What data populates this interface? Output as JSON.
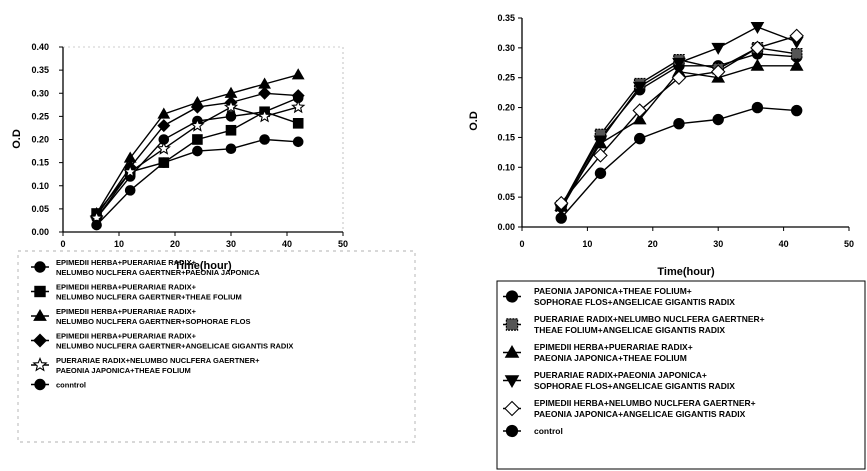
{
  "chart_data": [
    {
      "type": "line",
      "xlabel": "Time(hour)",
      "ylabel": "O.D",
      "xlim": [
        0,
        50
      ],
      "ylim": [
        0,
        0.4
      ],
      "xticks": [
        "0",
        "10",
        "20",
        "30",
        "40",
        "50"
      ],
      "yticks": [
        "0.00",
        "0.05",
        "0.10",
        "0.15",
        "0.20",
        "0.25",
        "0.30",
        "0.35",
        "0.40"
      ],
      "legend_position": "bottom",
      "x": [
        6,
        12,
        18,
        24,
        30,
        36,
        42
      ],
      "series": [
        {
          "name": "EPIMEDII HERBA+PUERARIAE RADIX+ NELUMBO NUCLFERA GAERTNER+PAEONIA JAPONICA",
          "name_lines": [
            "EPIMEDII HERBA+PUERARIAE RADIX+",
            "NELUMBO NUCLFERA GAERTNER+PAEONIA JAPONICA"
          ],
          "marker": "circle",
          "values": [
            0.03,
            0.12,
            0.2,
            0.24,
            0.25,
            0.26,
            0.29
          ]
        },
        {
          "name": "EPIMEDII HERBA+PUERARIAE RADIX+ NELUMBO NUCLFERA GAERTNER+THEAE FOLIUM",
          "name_lines": [
            "EPIMEDII HERBA+PUERARIAE RADIX+",
            "NELUMBO NUCLFERA GAERTNER+THEAE FOLIUM"
          ],
          "marker": "square",
          "values": [
            0.04,
            0.13,
            0.15,
            0.2,
            0.22,
            0.26,
            0.235
          ]
        },
        {
          "name": "EPIMEDII HERBA+PUERARIAE RADIX+ NELUMBO NUCLFERA GAERTNER+SOPHORAE FLOS",
          "name_lines": [
            "EPIMEDII HERBA+PUERARIAE RADIX+",
            "NELUMBO NUCLFERA GAERTNER+SOPHORAE FLOS"
          ],
          "marker": "triangle",
          "values": [
            0.04,
            0.16,
            0.255,
            0.28,
            0.3,
            0.32,
            0.34
          ]
        },
        {
          "name": "EPIMEDII HERBA+PUERARIAE RADIX+ NELUMBO NUCLFERA GAERTNER+ANGELICAE GIGANTIS RADIX",
          "name_lines": [
            "EPIMEDII HERBA+PUERARIAE RADIX+",
            "NELUMBO NUCLFERA GAERTNER+ANGELICAE GIGANTIS RADIX"
          ],
          "marker": "diamond",
          "values": [
            0.035,
            0.14,
            0.23,
            0.27,
            0.28,
            0.3,
            0.295
          ]
        },
        {
          "name": "PUERARIAE RADIX+NELUMBO NUCLFERA GAERTNER+ PAEONIA JAPONICA+THEAE FOLIUM",
          "name_lines": [
            "PUERARIAE RADIX+NELUMBO NUCLFERA GAERTNER+",
            "PAEONIA JAPONICA+THEAE FOLIUM"
          ],
          "marker": "star-open",
          "values": [
            0.03,
            0.13,
            0.18,
            0.23,
            0.27,
            0.25,
            0.27
          ]
        },
        {
          "name": "conntrol",
          "name_lines": [
            "conntrol"
          ],
          "marker": "circle",
          "values": [
            0.015,
            0.09,
            0.15,
            0.175,
            0.18,
            0.2,
            0.195
          ]
        }
      ]
    },
    {
      "type": "line",
      "xlabel": "Time(hour)",
      "ylabel": "O.D",
      "xlim": [
        0,
        50
      ],
      "ylim": [
        0,
        0.35
      ],
      "xticks": [
        "0",
        "10",
        "20",
        "30",
        "40",
        "50"
      ],
      "yticks": [
        "0.00",
        "0.05",
        "0.10",
        "0.15",
        "0.20",
        "0.25",
        "0.30",
        "0.35"
      ],
      "legend_position": "bottom",
      "x": [
        6,
        12,
        18,
        24,
        30,
        36,
        42
      ],
      "series": [
        {
          "name": "PAEONIA JAPONICA+THEAE FOLIUM+ SOPHORAE FLOS+ANGELICAE GIGANTIS RADIX",
          "name_lines": [
            "PAEONIA JAPONICA+THEAE FOLIUM+",
            "SOPHORAE FLOS+ANGELICAE GIGANTIS RADIX"
          ],
          "marker": "circle",
          "values": [
            0.035,
            0.15,
            0.23,
            0.27,
            0.27,
            0.29,
            0.285
          ]
        },
        {
          "name": "PUERARIAE RADIX+NELUMBO NUCLFERA GAERTNER+ THEAE FOLIUM+ANGELICAE GIGANTIS RADIX",
          "name_lines": [
            "PUERARIAE RADIX+NELUMBO NUCLFERA GAERTNER+",
            "THEAE FOLIUM+ANGELICAE GIGANTIS RADIX"
          ],
          "marker": "square-dotted",
          "values": [
            0.035,
            0.155,
            0.24,
            0.28,
            0.265,
            0.3,
            0.29
          ]
        },
        {
          "name": "EPIMEDII HERBA+PUERARIAE RADIX+ PAEONIA JAPONICA+THEAE FOLIUM",
          "name_lines": [
            "EPIMEDII HERBA+PUERARIAE RADIX+",
            "PAEONIA JAPONICA+THEAE FOLIUM"
          ],
          "marker": "triangle",
          "values": [
            0.035,
            0.14,
            0.18,
            0.26,
            0.25,
            0.27,
            0.27
          ]
        },
        {
          "name": "PUERARIAE RADIX+PAEONIA JAPONICA+ SOPHORAE FLOS+ANGELICAE GIGANTIS RADIX",
          "name_lines": [
            "PUERARIAE RADIX+PAEONIA JAPONICA+",
            "SOPHORAE FLOS+ANGELICAE GIGANTIS RADIX"
          ],
          "marker": "triangle-down",
          "values": [
            0.03,
            0.145,
            0.235,
            0.275,
            0.3,
            0.335,
            0.31
          ]
        },
        {
          "name": "EPIMEDII HERBA+NELUMBO NUCLFERA GAERTNER+ PAEONIA JAPONICA+ANGELICAE GIGANTIS RADIX",
          "name_lines": [
            "EPIMEDII HERBA+NELUMBO NUCLFERA GAERTNER+",
            "PAEONIA JAPONICA+ANGELICAE GIGANTIS RADIX"
          ],
          "marker": "diamond-open",
          "values": [
            0.04,
            0.12,
            0.195,
            0.25,
            0.26,
            0.3,
            0.32
          ]
        },
        {
          "name": "control",
          "name_lines": [
            "control"
          ],
          "marker": "circle",
          "values": [
            0.015,
            0.09,
            0.148,
            0.173,
            0.18,
            0.2,
            0.195
          ]
        }
      ]
    }
  ]
}
